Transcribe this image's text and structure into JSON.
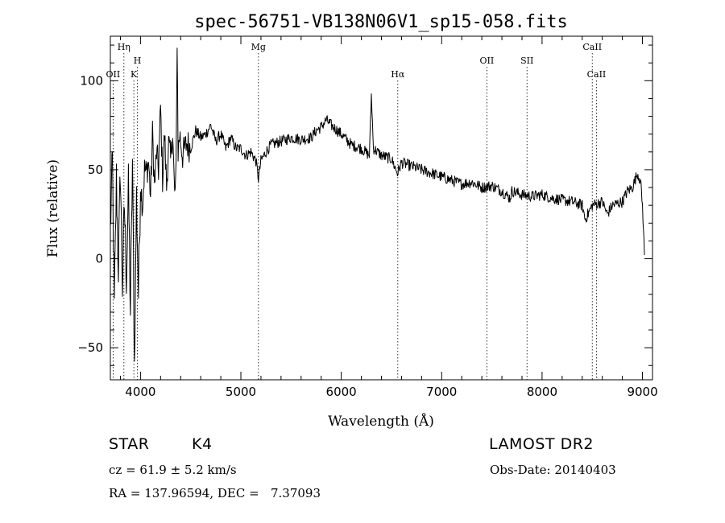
{
  "chart_data": {
    "type": "line",
    "title": "spec-56751-VB138N06V1_sp15-058.fits",
    "xlabel": "Wavelength (Å)",
    "ylabel": "Flux (relative)",
    "xlim": [
      3700,
      9100
    ],
    "ylim": [
      -68,
      125
    ],
    "xticks": [
      4000,
      5000,
      6000,
      7000,
      8000,
      9000
    ],
    "yticks": [
      -50,
      0,
      50,
      100
    ],
    "xtick_labels": [
      "4000",
      "5000",
      "6000",
      "7000",
      "8000",
      "9000"
    ],
    "ytick_labels": [
      "−50",
      "0",
      "50",
      "100"
    ],
    "grid": false,
    "spectral_lines": [
      {
        "label": "OII",
        "wavelength": 3727,
        "row": 3
      },
      {
        "label": "Hη",
        "wavelength": 3835,
        "row": 1
      },
      {
        "label": "K",
        "wavelength": 3934,
        "row": 3
      },
      {
        "label": "H",
        "wavelength": 3969,
        "row": 2
      },
      {
        "label": "Mg",
        "wavelength": 5175,
        "row": 1
      },
      {
        "label": "Hα",
        "wavelength": 6563,
        "row": 3
      },
      {
        "label": "OII",
        "wavelength": 7450,
        "row": 2
      },
      {
        "label": "SII",
        "wavelength": 7850,
        "row": 2
      },
      {
        "label": "CaII",
        "wavelength": 8500,
        "row": 1
      },
      {
        "label": "CaII",
        "wavelength": 8542,
        "row": 3
      }
    ],
    "series": [
      {
        "name": "flux",
        "x": [
          3700,
          3720,
          3740,
          3760,
          3780,
          3800,
          3820,
          3840,
          3860,
          3880,
          3900,
          3920,
          3940,
          3960,
          3980,
          4000,
          4020,
          4040,
          4060,
          4080,
          4100,
          4120,
          4140,
          4160,
          4180,
          4200,
          4220,
          4240,
          4260,
          4280,
          4300,
          4320,
          4340,
          4355,
          4365,
          4375,
          4390,
          4420,
          4460,
          4500,
          4550,
          4600,
          4650,
          4700,
          4750,
          4800,
          4850,
          4900,
          4950,
          5000,
          5050,
          5100,
          5150,
          5175,
          5200,
          5250,
          5300,
          5400,
          5500,
          5600,
          5700,
          5750,
          5800,
          5850,
          5900,
          6000,
          6100,
          6200,
          6280,
          6300,
          6320,
          6400,
          6500,
          6560,
          6600,
          6700,
          6800,
          6900,
          7000,
          7100,
          7200,
          7300,
          7400,
          7500,
          7600,
          7680,
          7700,
          7800,
          7900,
          8000,
          8100,
          8200,
          8300,
          8400,
          8430,
          8500,
          8600,
          8650,
          8700,
          8800,
          8850,
          8900,
          8950,
          8980,
          9000,
          9020
        ],
        "values": [
          15,
          55,
          -28,
          45,
          -5,
          50,
          -15,
          30,
          -10,
          40,
          -30,
          55,
          -60,
          35,
          -20,
          42,
          30,
          50,
          48,
          55,
          35,
          70,
          40,
          60,
          50,
          85,
          45,
          70,
          40,
          65,
          55,
          72,
          35,
          48,
          125,
          60,
          70,
          58,
          65,
          62,
          72,
          68,
          70,
          75,
          66,
          70,
          62,
          68,
          62,
          62,
          58,
          60,
          55,
          45,
          55,
          60,
          64,
          66,
          68,
          67,
          68,
          72,
          74,
          78,
          75,
          70,
          64,
          62,
          58,
          92,
          62,
          58,
          56,
          48,
          54,
          52,
          50,
          48,
          46,
          44,
          42,
          43,
          40,
          41,
          38,
          34,
          38,
          36,
          35,
          36,
          34,
          33,
          32,
          30,
          22,
          30,
          32,
          25,
          30,
          32,
          38,
          40,
          48,
          44,
          30,
          2
        ]
      }
    ]
  },
  "info": {
    "object_type": "STAR",
    "subclass": "K4",
    "survey": "LAMOST DR2",
    "cz": "cz = 61.9 ± 5.2 km/s",
    "obs_date": "Obs-Date: 20140403",
    "coords": "RA = 137.96594, DEC =   7.37093"
  }
}
